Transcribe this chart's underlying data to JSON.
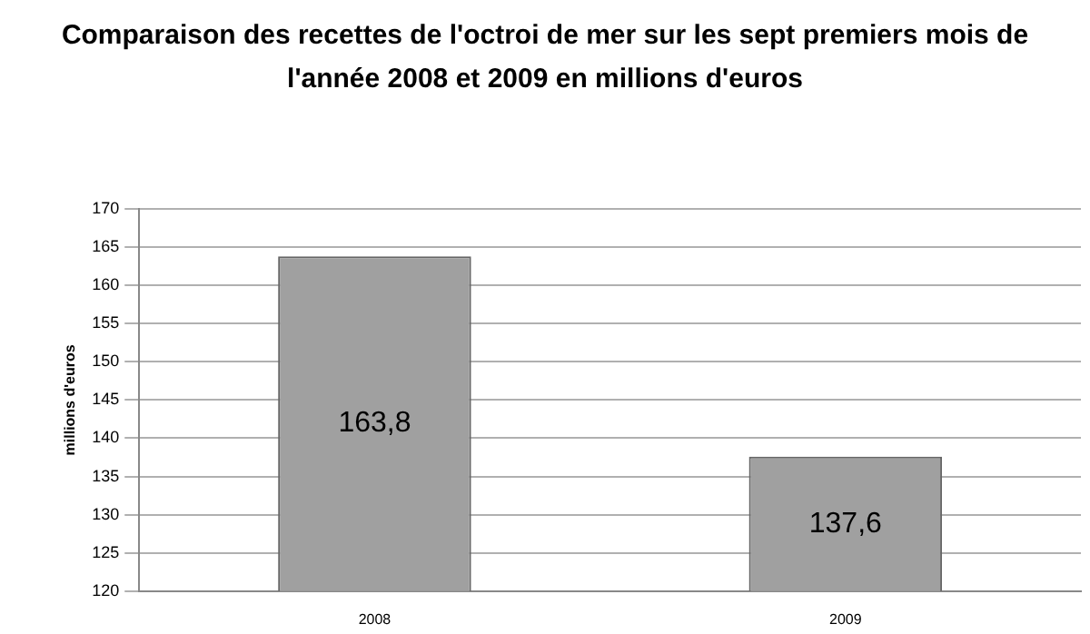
{
  "chart_data": {
    "type": "bar",
    "title": "Comparaison des recettes de l'octroi de mer sur les sept premiers mois de l'année 2008 et 2009 en millions d'euros",
    "ylabel": "millions d'euros",
    "categories": [
      "2008",
      "2009"
    ],
    "values": [
      163.8,
      137.6
    ],
    "value_labels": [
      "163,8",
      "137,6"
    ],
    "color": "#a0a0a0",
    "ylim": [
      120,
      170
    ],
    "yticks": [
      120,
      125,
      130,
      135,
      140,
      145,
      150,
      155,
      160,
      165,
      170
    ],
    "grid": "y",
    "legend": false
  }
}
